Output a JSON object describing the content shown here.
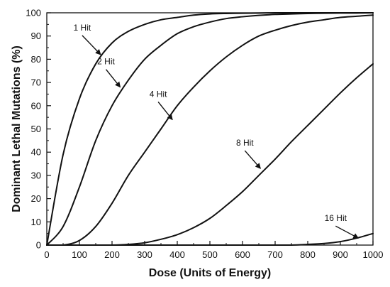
{
  "chart_data": {
    "type": "line",
    "title": "",
    "xlabel": "Dose (Units of Energy)",
    "ylabel": "Dominant Lethal Mutations (%)",
    "xlim": [
      0,
      1000
    ],
    "ylim": [
      0,
      100
    ],
    "xticks": [
      0,
      100,
      200,
      300,
      400,
      500,
      600,
      700,
      800,
      900,
      1000
    ],
    "yticks": [
      0,
      10,
      20,
      30,
      40,
      50,
      60,
      70,
      80,
      90,
      100
    ],
    "grid": false,
    "x": [
      0,
      50,
      100,
      150,
      200,
      250,
      300,
      350,
      400,
      450,
      500,
      550,
      600,
      650,
      700,
      750,
      800,
      850,
      900,
      950,
      1000
    ],
    "series": [
      {
        "name": "1 Hit",
        "values": [
          0,
          39,
          63,
          78,
          87,
          92,
          95,
          97,
          98,
          99,
          99.5,
          99.7,
          99.8,
          99.9,
          100,
          100,
          100,
          100,
          100,
          100,
          100
        ]
      },
      {
        "name": "2 Hit",
        "values": [
          0,
          8,
          25,
          45,
          60,
          71,
          80,
          86,
          91,
          94,
          96,
          97.5,
          98.3,
          98.9,
          99.3,
          99.5,
          99.7,
          99.8,
          99.9,
          99.9,
          100
        ]
      },
      {
        "name": "4 Hit",
        "values": [
          0,
          0,
          2,
          8,
          18,
          30,
          40,
          50,
          60,
          68,
          75,
          81,
          86,
          90,
          92.5,
          94.5,
          96,
          97,
          98,
          98.5,
          99
        ]
      },
      {
        "name": "8 Hit",
        "values": [
          0,
          0,
          0,
          0,
          0,
          0.3,
          1,
          2.5,
          4.5,
          7.5,
          11.5,
          17,
          23,
          30,
          37,
          44.5,
          51.5,
          58.5,
          65.5,
          72,
          78
        ]
      },
      {
        "name": "16 Hit",
        "values": [
          0,
          0,
          0,
          0,
          0,
          0,
          0,
          0,
          0,
          0,
          0,
          0,
          0,
          0,
          0,
          0,
          0.3,
          0.7,
          1.5,
          3,
          5
        ]
      }
    ],
    "annotations": [
      {
        "series": "1 Hit",
        "text": "1 Hit",
        "x": 165,
        "y": 82
      },
      {
        "series": "2 Hit",
        "text": "2 Hit",
        "x": 225,
        "y": 68
      },
      {
        "series": "4 Hit",
        "text": "4 Hit",
        "x": 385,
        "y": 54
      },
      {
        "series": "8 Hit",
        "text": "8 Hit",
        "x": 655,
        "y": 33
      },
      {
        "series": "16 Hit",
        "text": "16 Hit",
        "x": 955,
        "y": 3
      }
    ]
  }
}
